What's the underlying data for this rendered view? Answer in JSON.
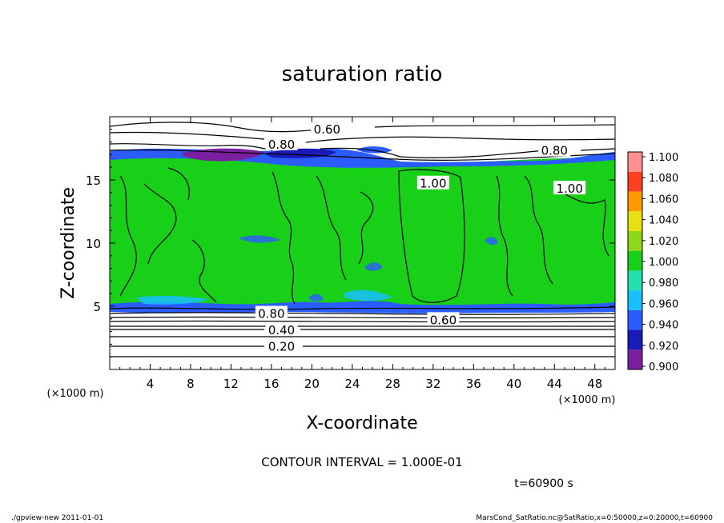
{
  "chart_data": {
    "type": "heatmap",
    "title": "saturation ratio",
    "xlabel": "X-coordinate",
    "ylabel": "Z-coordinate",
    "x_unit_note": "(×1000 m)",
    "y_unit_note": "(×1000 m)",
    "xlim": [
      0,
      50
    ],
    "ylim": [
      0,
      20
    ],
    "x_ticks": [
      4,
      8,
      12,
      16,
      20,
      24,
      28,
      32,
      36,
      40,
      44,
      48
    ],
    "y_ticks": [
      5,
      10,
      15
    ],
    "x_tick_labels": [
      "4",
      "8",
      "12",
      "16",
      "20",
      "24",
      "28",
      "32",
      "36",
      "40",
      "44",
      "48"
    ],
    "y_tick_labels": [
      "5",
      "10",
      "15"
    ],
    "colorbar": {
      "levels": [
        0.9,
        0.92,
        0.94,
        0.96,
        0.98,
        1.0,
        1.02,
        1.04,
        1.06,
        1.08,
        1.1
      ],
      "labels": [
        "0.900",
        "0.920",
        "0.940",
        "0.960",
        "0.980",
        "1.000",
        "1.020",
        "1.040",
        "1.060",
        "1.080",
        "1.100"
      ],
      "colors": [
        "#7a1fa0",
        "#1a1ab8",
        "#2a5cff",
        "#18c0ff",
        "#22e0b0",
        "#19d019",
        "#8fd818",
        "#e8e010",
        "#ff9a00",
        "#ff4020",
        "#ff9090"
      ]
    },
    "contour_labels": [
      {
        "text": "0.60",
        "x": 21.5,
        "y": 19.0
      },
      {
        "text": "0.80",
        "x": 17.0,
        "y": 17.8
      },
      {
        "text": "0.80",
        "x": 44.0,
        "y": 17.3
      },
      {
        "text": "1.00",
        "x": 32.0,
        "y": 14.7
      },
      {
        "text": "1.00",
        "x": 45.5,
        "y": 14.3
      },
      {
        "text": "0.80",
        "x": 16.0,
        "y": 4.4
      },
      {
        "text": "0.60",
        "x": 33.0,
        "y": 3.9
      },
      {
        "text": "0.40",
        "x": 17.0,
        "y": 3.1
      },
      {
        "text": "0.20",
        "x": 17.0,
        "y": 1.8
      }
    ]
  },
  "contour_interval": "CONTOUR INTERVAL = 1.000E-01",
  "time_label": "t=60900 s",
  "footer_left": "./gpview-new   2011-01-01",
  "footer_right": "MarsCond_SatRatio.nc@SatRatio,x=0:50000,z=0:20000,t=60900"
}
